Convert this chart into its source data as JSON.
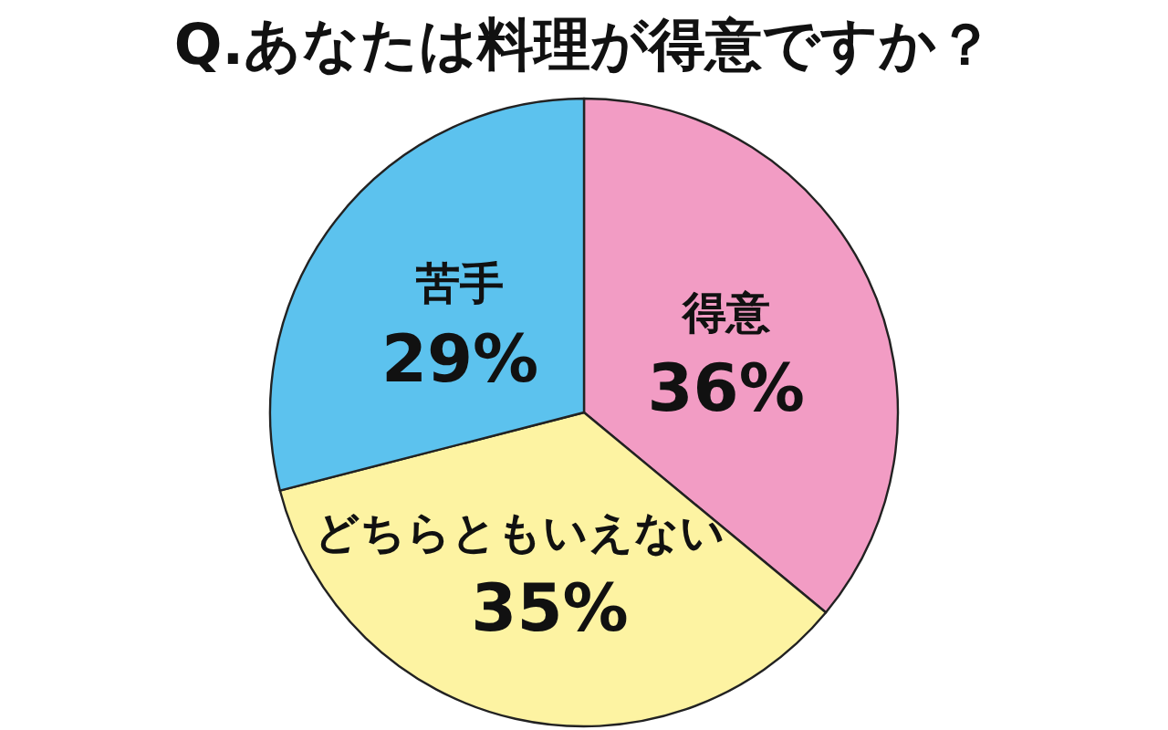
{
  "chart_data": {
    "type": "pie",
    "title": "Q.あなたは料理が得意ですか？",
    "categories": [
      "得意",
      "どちらともいえない",
      "苦手"
    ],
    "values": [
      36,
      35,
      29
    ],
    "colors": [
      "#f29cc4",
      "#fdf3a2",
      "#5cc2ee"
    ],
    "value_labels": [
      "36%",
      "35%",
      "29%"
    ]
  }
}
